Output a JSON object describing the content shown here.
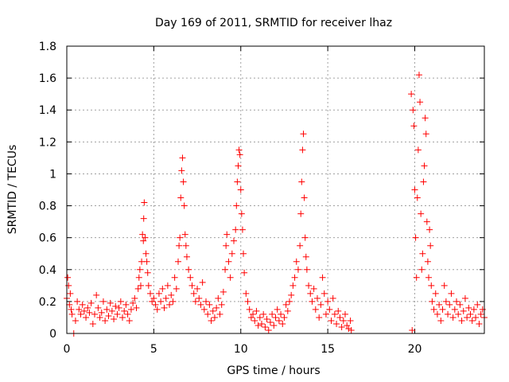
{
  "chart_data": {
    "type": "scatter",
    "title": "Day 169 of 2011, SRMTID for receiver lhaz",
    "xlabel": "GPS time / hours",
    "ylabel": "SRMTID / TECUs",
    "xlim": [
      0,
      24
    ],
    "ylim": [
      0,
      1.8
    ],
    "x_ticks": [
      0,
      5,
      10,
      15,
      20
    ],
    "x_tick_labels": [
      "0",
      "5",
      "10",
      "15",
      "20"
    ],
    "y_ticks": [
      0,
      0.2,
      0.4,
      0.6,
      0.8,
      1,
      1.2,
      1.4,
      1.6,
      1.8
    ],
    "y_tick_labels": [
      "0",
      "0.2",
      "0.4",
      "0.6",
      "0.8",
      "1",
      "1.2",
      "1.4",
      "1.6",
      "1.8"
    ],
    "grid": true,
    "marker": "plus",
    "color": "#ff0000",
    "series": [
      {
        "name": "SRMTID",
        "points": [
          [
            0.0,
            0.22
          ],
          [
            0.05,
            0.35
          ],
          [
            0.1,
            0.3
          ],
          [
            0.15,
            0.18
          ],
          [
            0.2,
            0.25
          ],
          [
            0.25,
            0.15
          ],
          [
            0.3,
            0.12
          ],
          [
            0.4,
            0.0
          ],
          [
            0.5,
            0.08
          ],
          [
            0.6,
            0.2
          ],
          [
            0.7,
            0.15
          ],
          [
            0.8,
            0.12
          ],
          [
            0.9,
            0.18
          ],
          [
            1.0,
            0.14
          ],
          [
            1.1,
            0.1
          ],
          [
            1.2,
            0.16
          ],
          [
            1.3,
            0.13
          ],
          [
            1.4,
            0.19
          ],
          [
            1.5,
            0.06
          ],
          [
            1.6,
            0.12
          ],
          [
            1.7,
            0.24
          ],
          [
            1.8,
            0.16
          ],
          [
            1.9,
            0.1
          ],
          [
            2.0,
            0.13
          ],
          [
            2.1,
            0.2
          ],
          [
            2.2,
            0.08
          ],
          [
            2.3,
            0.15
          ],
          [
            2.4,
            0.11
          ],
          [
            2.5,
            0.19
          ],
          [
            2.6,
            0.14
          ],
          [
            2.7,
            0.09
          ],
          [
            2.8,
            0.17
          ],
          [
            2.9,
            0.12
          ],
          [
            3.0,
            0.16
          ],
          [
            3.1,
            0.2
          ],
          [
            3.2,
            0.1
          ],
          [
            3.3,
            0.14
          ],
          [
            3.4,
            0.18
          ],
          [
            3.5,
            0.12
          ],
          [
            3.6,
            0.08
          ],
          [
            3.7,
            0.15
          ],
          [
            3.8,
            0.19
          ],
          [
            3.9,
            0.22
          ],
          [
            4.0,
            0.16
          ],
          [
            4.1,
            0.28
          ],
          [
            4.15,
            0.35
          ],
          [
            4.2,
            0.4
          ],
          [
            4.25,
            0.3
          ],
          [
            4.3,
            0.45
          ],
          [
            4.35,
            0.62
          ],
          [
            4.4,
            0.58
          ],
          [
            4.42,
            0.72
          ],
          [
            4.45,
            0.82
          ],
          [
            4.5,
            0.6
          ],
          [
            4.55,
            0.5
          ],
          [
            4.6,
            0.45
          ],
          [
            4.65,
            0.38
          ],
          [
            4.7,
            0.3
          ],
          [
            4.8,
            0.25
          ],
          [
            4.9,
            0.2
          ],
          [
            5.0,
            0.22
          ],
          [
            5.1,
            0.18
          ],
          [
            5.2,
            0.15
          ],
          [
            5.3,
            0.25
          ],
          [
            5.4,
            0.2
          ],
          [
            5.5,
            0.28
          ],
          [
            5.6,
            0.16
          ],
          [
            5.7,
            0.22
          ],
          [
            5.8,
            0.3
          ],
          [
            5.9,
            0.18
          ],
          [
            6.0,
            0.24
          ],
          [
            6.1,
            0.2
          ],
          [
            6.2,
            0.35
          ],
          [
            6.3,
            0.28
          ],
          [
            6.4,
            0.45
          ],
          [
            6.45,
            0.55
          ],
          [
            6.5,
            0.6
          ],
          [
            6.55,
            0.85
          ],
          [
            6.6,
            1.02
          ],
          [
            6.65,
            1.1
          ],
          [
            6.7,
            0.95
          ],
          [
            6.75,
            0.8
          ],
          [
            6.8,
            0.62
          ],
          [
            6.85,
            0.55
          ],
          [
            6.9,
            0.48
          ],
          [
            7.0,
            0.4
          ],
          [
            7.1,
            0.35
          ],
          [
            7.2,
            0.3
          ],
          [
            7.3,
            0.25
          ],
          [
            7.4,
            0.2
          ],
          [
            7.5,
            0.28
          ],
          [
            7.6,
            0.22
          ],
          [
            7.7,
            0.18
          ],
          [
            7.8,
            0.32
          ],
          [
            7.9,
            0.15
          ],
          [
            8.0,
            0.2
          ],
          [
            8.1,
            0.12
          ],
          [
            8.2,
            0.18
          ],
          [
            8.3,
            0.08
          ],
          [
            8.4,
            0.14
          ],
          [
            8.5,
            0.1
          ],
          [
            8.6,
            0.16
          ],
          [
            8.7,
            0.22
          ],
          [
            8.8,
            0.12
          ],
          [
            8.9,
            0.18
          ],
          [
            9.0,
            0.26
          ],
          [
            9.1,
            0.4
          ],
          [
            9.15,
            0.55
          ],
          [
            9.2,
            0.62
          ],
          [
            9.3,
            0.45
          ],
          [
            9.4,
            0.35
          ],
          [
            9.5,
            0.5
          ],
          [
            9.6,
            0.58
          ],
          [
            9.7,
            0.65
          ],
          [
            9.75,
            0.8
          ],
          [
            9.8,
            0.95
          ],
          [
            9.85,
            1.05
          ],
          [
            9.9,
            1.15
          ],
          [
            9.95,
            1.12
          ],
          [
            10.0,
            0.9
          ],
          [
            10.05,
            0.75
          ],
          [
            10.1,
            0.65
          ],
          [
            10.15,
            0.5
          ],
          [
            10.2,
            0.38
          ],
          [
            10.3,
            0.25
          ],
          [
            10.4,
            0.2
          ],
          [
            10.5,
            0.15
          ],
          [
            10.6,
            0.1
          ],
          [
            10.7,
            0.12
          ],
          [
            10.8,
            0.08
          ],
          [
            10.9,
            0.14
          ],
          [
            11.0,
            0.05
          ],
          [
            11.1,
            0.1
          ],
          [
            11.2,
            0.06
          ],
          [
            11.3,
            0.12
          ],
          [
            11.4,
            0.04
          ],
          [
            11.5,
            0.09
          ],
          [
            11.6,
            0.02
          ],
          [
            11.7,
            0.07
          ],
          [
            11.8,
            0.12
          ],
          [
            11.9,
            0.05
          ],
          [
            12.0,
            0.1
          ],
          [
            12.1,
            0.15
          ],
          [
            12.2,
            0.08
          ],
          [
            12.3,
            0.12
          ],
          [
            12.4,
            0.06
          ],
          [
            12.5,
            0.1
          ],
          [
            12.6,
            0.18
          ],
          [
            12.7,
            0.14
          ],
          [
            12.8,
            0.2
          ],
          [
            12.9,
            0.24
          ],
          [
            13.0,
            0.3
          ],
          [
            13.1,
            0.35
          ],
          [
            13.2,
            0.45
          ],
          [
            13.3,
            0.4
          ],
          [
            13.4,
            0.55
          ],
          [
            13.45,
            0.75
          ],
          [
            13.5,
            0.95
          ],
          [
            13.55,
            1.15
          ],
          [
            13.6,
            1.25
          ],
          [
            13.65,
            0.85
          ],
          [
            13.7,
            0.6
          ],
          [
            13.75,
            0.48
          ],
          [
            13.8,
            0.4
          ],
          [
            13.9,
            0.3
          ],
          [
            14.0,
            0.25
          ],
          [
            14.1,
            0.2
          ],
          [
            14.2,
            0.28
          ],
          [
            14.3,
            0.15
          ],
          [
            14.4,
            0.22
          ],
          [
            14.5,
            0.1
          ],
          [
            14.6,
            0.18
          ],
          [
            14.7,
            0.35
          ],
          [
            14.8,
            0.25
          ],
          [
            14.9,
            0.12
          ],
          [
            15.0,
            0.2
          ],
          [
            15.1,
            0.15
          ],
          [
            15.2,
            0.08
          ],
          [
            15.3,
            0.22
          ],
          [
            15.4,
            0.12
          ],
          [
            15.5,
            0.06
          ],
          [
            15.6,
            0.14
          ],
          [
            15.7,
            0.1
          ],
          [
            15.8,
            0.04
          ],
          [
            15.9,
            0.08
          ],
          [
            16.0,
            0.12
          ],
          [
            16.1,
            0.05
          ],
          [
            16.2,
            0.03
          ],
          [
            16.3,
            0.08
          ],
          [
            16.35,
            0.02
          ],
          [
            19.8,
            1.5
          ],
          [
            19.85,
            0.02
          ],
          [
            19.9,
            1.4
          ],
          [
            19.95,
            1.3
          ],
          [
            20.0,
            0.9
          ],
          [
            20.05,
            0.6
          ],
          [
            20.1,
            0.35
          ],
          [
            20.15,
            0.85
          ],
          [
            20.2,
            1.15
          ],
          [
            20.25,
            1.62
          ],
          [
            20.3,
            1.45
          ],
          [
            20.35,
            0.75
          ],
          [
            20.4,
            0.4
          ],
          [
            20.45,
            0.5
          ],
          [
            20.5,
            0.95
          ],
          [
            20.55,
            1.05
          ],
          [
            20.6,
            1.35
          ],
          [
            20.65,
            1.25
          ],
          [
            20.7,
            0.7
          ],
          [
            20.75,
            0.45
          ],
          [
            20.8,
            0.35
          ],
          [
            20.85,
            0.65
          ],
          [
            20.9,
            0.55
          ],
          [
            20.95,
            0.3
          ],
          [
            21.0,
            0.2
          ],
          [
            21.1,
            0.15
          ],
          [
            21.2,
            0.25
          ],
          [
            21.3,
            0.12
          ],
          [
            21.4,
            0.18
          ],
          [
            21.5,
            0.08
          ],
          [
            21.6,
            0.15
          ],
          [
            21.7,
            0.3
          ],
          [
            21.8,
            0.2
          ],
          [
            21.9,
            0.12
          ],
          [
            22.0,
            0.18
          ],
          [
            22.1,
            0.25
          ],
          [
            22.2,
            0.1
          ],
          [
            22.3,
            0.15
          ],
          [
            22.4,
            0.2
          ],
          [
            22.5,
            0.12
          ],
          [
            22.6,
            0.18
          ],
          [
            22.7,
            0.08
          ],
          [
            22.8,
            0.14
          ],
          [
            22.9,
            0.22
          ],
          [
            23.0,
            0.1
          ],
          [
            23.1,
            0.16
          ],
          [
            23.2,
            0.12
          ],
          [
            23.3,
            0.08
          ],
          [
            23.4,
            0.15
          ],
          [
            23.5,
            0.1
          ],
          [
            23.6,
            0.18
          ],
          [
            23.7,
            0.06
          ],
          [
            23.8,
            0.12
          ],
          [
            23.9,
            0.15
          ],
          [
            24.0,
            0.1
          ]
        ]
      }
    ]
  }
}
